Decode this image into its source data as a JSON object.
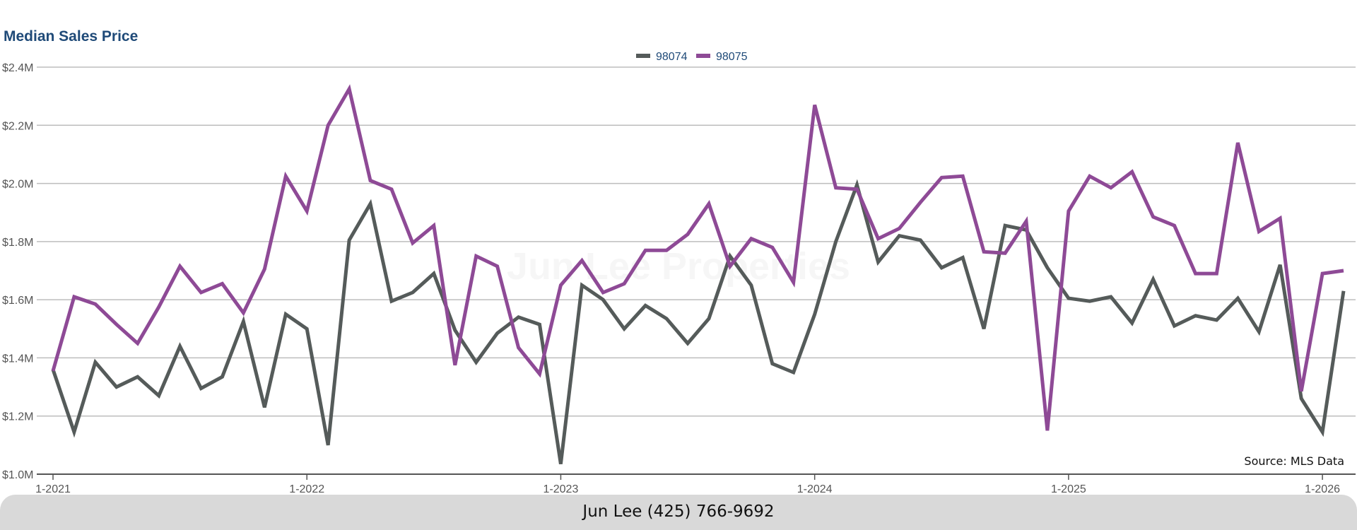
{
  "chart_data": {
    "type": "line",
    "title": "Median Sales Price",
    "ylim": [
      1000000,
      2400000
    ],
    "y_ticks": [
      {
        "value": 1000000,
        "label": "$1.0M"
      },
      {
        "value": 1200000,
        "label": "$1.2M"
      },
      {
        "value": 1400000,
        "label": "$1.4M"
      },
      {
        "value": 1600000,
        "label": "$1.6M"
      },
      {
        "value": 1800000,
        "label": "$1.8M"
      },
      {
        "value": 2000000,
        "label": "$2.0M"
      },
      {
        "value": 2200000,
        "label": "$2.2M"
      },
      {
        "value": 2400000,
        "label": "$2.4M"
      }
    ],
    "x_ticks": [
      "1-2021",
      "1-2022",
      "1-2023",
      "1-2024",
      "1-2025",
      "1-2026"
    ],
    "x_start": "2021-01",
    "x_end": "2026-02",
    "grid": true,
    "legend_position": "top-center",
    "series": [
      {
        "name": "98074",
        "color": "#555b5a",
        "values": [
          1360000,
          1145000,
          1385000,
          1300000,
          1335000,
          1270000,
          1440000,
          1295000,
          1335000,
          1525000,
          1230000,
          1550000,
          1500000,
          1100000,
          1805000,
          1930000,
          1595000,
          1625000,
          1690000,
          1495000,
          1385000,
          1485000,
          1540000,
          1515000,
          1035000,
          1650000,
          1600000,
          1500000,
          1580000,
          1535000,
          1450000,
          1535000,
          1750000,
          1650000,
          1380000,
          1350000,
          1550000,
          1800000,
          1995000,
          1730000,
          1820000,
          1805000,
          1710000,
          1745000,
          1500000,
          1855000,
          1840000,
          1710000,
          1605000,
          1595000,
          1610000,
          1520000,
          1670000,
          1510000,
          1545000,
          1530000,
          1605000,
          1490000,
          1720000,
          1260000,
          1145000,
          1630000
        ]
      },
      {
        "name": "98075",
        "color": "#8e4a96",
        "values": [
          1355000,
          1610000,
          1585000,
          1515000,
          1450000,
          1575000,
          1715000,
          1625000,
          1655000,
          1555000,
          1705000,
          2025000,
          1905000,
          2200000,
          2325000,
          2010000,
          1980000,
          1795000,
          1855000,
          1375000,
          1750000,
          1715000,
          1435000,
          1345000,
          1650000,
          1735000,
          1625000,
          1655000,
          1770000,
          1770000,
          1825000,
          1930000,
          1715000,
          1810000,
          1780000,
          1660000,
          2270000,
          1985000,
          1980000,
          1810000,
          1845000,
          1935000,
          2020000,
          2025000,
          1765000,
          1760000,
          1870000,
          1150000,
          1905000,
          2025000,
          1985000,
          2040000,
          1885000,
          1855000,
          1690000,
          1690000,
          2140000,
          1835000,
          1880000,
          1285000,
          1690000,
          1700000
        ]
      }
    ],
    "source": "Source: MLS Data",
    "watermark": "Jun Lee Properties"
  },
  "footer": {
    "contact": "Jun Lee (425) 766-9692"
  }
}
